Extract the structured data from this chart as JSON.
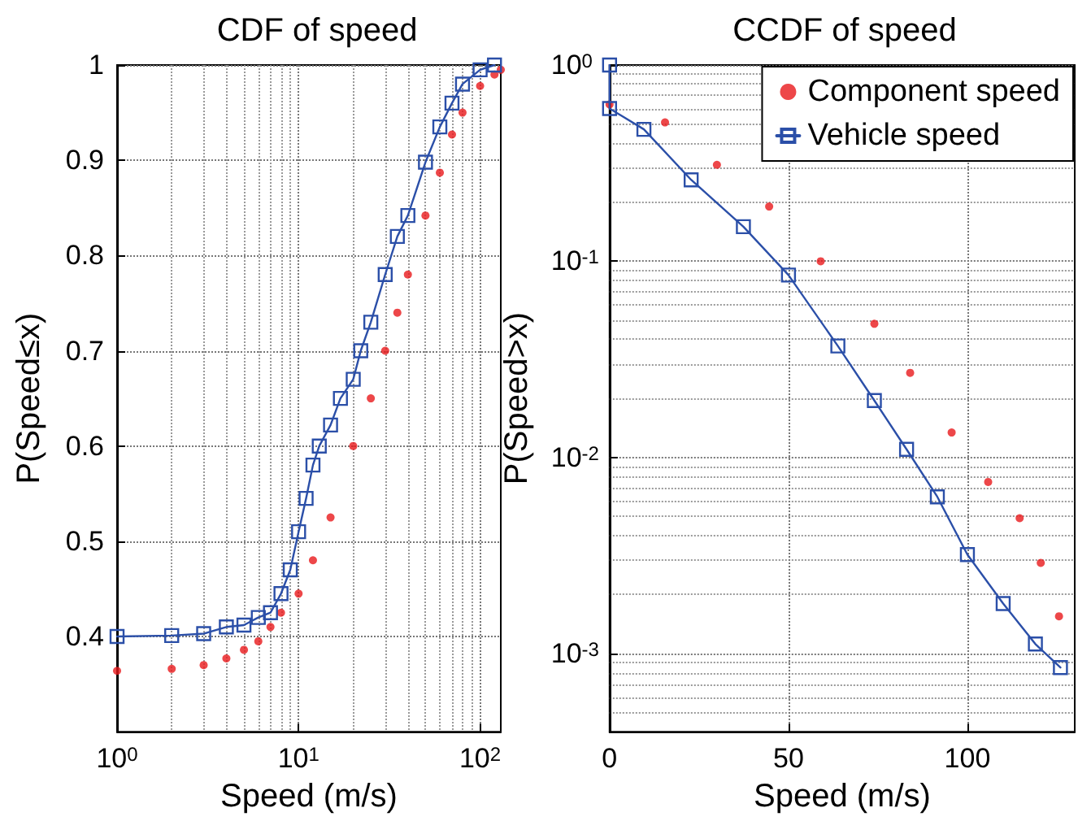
{
  "chart_data": [
    {
      "type": "line",
      "title": "CDF of speed",
      "xlabel": "Speed (m/s)",
      "ylabel": "P(Speed≤x)",
      "log": "x",
      "grid": true,
      "legend": false,
      "xlim": [
        1,
        130
      ],
      "xticks": [
        {
          "value": 1,
          "label": "10$^{0}$"
        },
        {
          "value": 10,
          "label": "10$^{1}$"
        },
        {
          "value": 100,
          "label": "10$^{2}$"
        }
      ],
      "ylim": [
        0.3,
        1
      ],
      "yticks": [
        0.4,
        0.5,
        0.6,
        0.7,
        0.8,
        0.9,
        1
      ],
      "series": [
        {
          "type": "scatter",
          "marker": "circle",
          "color": "#e8191c",
          "x": [
            1,
            2,
            3,
            4,
            5,
            6,
            7,
            8,
            10,
            12,
            15,
            20,
            25,
            30,
            35,
            40,
            50,
            60,
            70,
            80,
            100,
            120,
            130
          ],
          "values": [
            0.364,
            0.366,
            0.37,
            0.377,
            0.386,
            0.395,
            0.41,
            0.425,
            0.445,
            0.48,
            0.525,
            0.6,
            0.65,
            0.7,
            0.74,
            0.78,
            0.842,
            0.887,
            0.927,
            0.95,
            0.978,
            0.99,
            0.995
          ]
        },
        {
          "type": "line",
          "marker": "square",
          "line_style": "solid",
          "color": "#2b4fa8",
          "x": [
            1,
            2,
            3,
            4,
            5,
            6,
            7,
            8,
            9,
            10,
            11,
            12,
            13,
            15,
            17,
            20,
            22,
            25,
            30,
            35,
            40,
            50,
            60,
            70,
            80,
            100,
            120
          ],
          "values": [
            0.4,
            0.401,
            0.403,
            0.41,
            0.412,
            0.42,
            0.425,
            0.445,
            0.47,
            0.51,
            0.545,
            0.58,
            0.6,
            0.622,
            0.65,
            0.67,
            0.7,
            0.73,
            0.78,
            0.82,
            0.842,
            0.898,
            0.935,
            0.96,
            0.98,
            0.995,
            1
          ]
        }
      ]
    },
    {
      "type": "line",
      "title": "CCDF of speed",
      "xlabel": "Speed (m/s)",
      "ylabel": "P(Speed>x)",
      "log": "y",
      "grid": true,
      "legend": "top right",
      "xlim": [
        0,
        130
      ],
      "xticks": [
        0,
        50,
        100
      ],
      "ylim": [
        0.0004,
        1
      ],
      "yticks": [
        {
          "value": 1,
          "label": "10$^{0}$"
        },
        {
          "value": 0.1,
          "label": "10$^{-1}$"
        },
        {
          "value": 0.01,
          "label": "10$^{-2}$"
        },
        {
          "value": 0.001,
          "label": "10$^{-3}$"
        }
      ],
      "series": [
        {
          "type": "scatter",
          "marker": "circle",
          "name": "Component speed",
          "color": "#e8191c",
          "x": [
            0,
            15.5,
            30,
            44.6,
            59,
            74,
            84,
            95.6,
            105.8,
            114.6,
            120.5,
            125.6
          ],
          "values": [
            0.63,
            0.51,
            0.31,
            0.19,
            0.1,
            0.048,
            0.027,
            0.0134,
            0.0075,
            0.0049,
            0.0029,
            0.00155
          ]
        },
        {
          "type": "line",
          "marker": "square",
          "line_style": "solid",
          "name": "Vehicle speed",
          "color": "#2b4fa8",
          "x": [
            0,
            0,
            9.6,
            22.8,
            37.4,
            50,
            63.8,
            74,
            83,
            91.6,
            100,
            110,
            119,
            126
          ],
          "values": [
            1,
            0.6,
            0.47,
            0.26,
            0.15,
            0.085,
            0.037,
            0.0195,
            0.011,
            0.0063,
            0.0032,
            0.0018,
            0.00112,
            0.00085
          ]
        }
      ]
    }
  ]
}
